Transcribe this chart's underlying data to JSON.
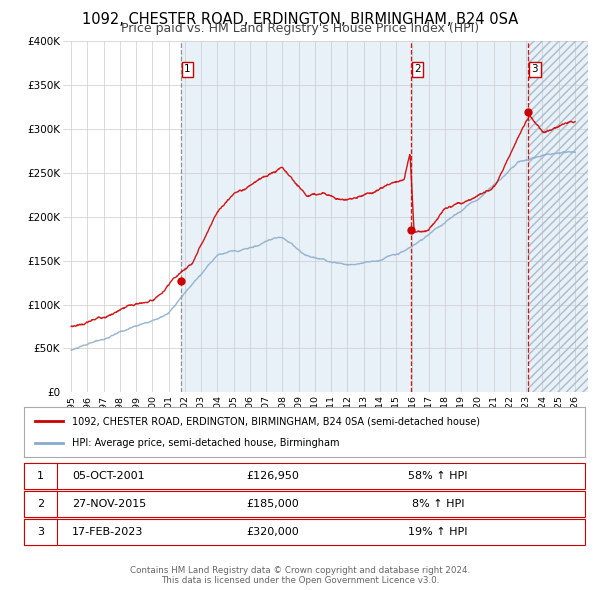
{
  "title": "1092, CHESTER ROAD, ERDINGTON, BIRMINGHAM, B24 0SA",
  "subtitle": "Price paid vs. HM Land Registry's House Price Index (HPI)",
  "ylim": [
    0,
    400000
  ],
  "yticks": [
    0,
    50000,
    100000,
    150000,
    200000,
    250000,
    300000,
    350000,
    400000
  ],
  "ytick_labels": [
    "£0",
    "£50K",
    "£100K",
    "£150K",
    "£200K",
    "£250K",
    "£300K",
    "£350K",
    "£400K"
  ],
  "xlim_start": 1994.5,
  "xlim_end": 2026.8,
  "sale_dates": [
    2001.758,
    2015.906,
    2023.126
  ],
  "sale_prices": [
    126950,
    185000,
    320000
  ],
  "sale_labels": [
    "1",
    "2",
    "3"
  ],
  "sale_dates_str": [
    "05-OCT-2001",
    "27-NOV-2015",
    "17-FEB-2023"
  ],
  "sale_prices_str": [
    "£126,950",
    "£185,000",
    "£320,000"
  ],
  "sale_hpi_str": [
    "58% ↑ HPI",
    "8% ↑ HPI",
    "19% ↑ HPI"
  ],
  "red_color": "#cc0000",
  "blue_color": "#88aacc",
  "shade_color": "#ddeeff",
  "background_color": "#ffffff",
  "grid_color": "#cccccc",
  "title_fontsize": 10.5,
  "subtitle_fontsize": 9,
  "legend_label_red": "1092, CHESTER ROAD, ERDINGTON, BIRMINGHAM, B24 0SA (semi-detached house)",
  "legend_label_blue": "HPI: Average price, semi-detached house, Birmingham",
  "footer_text": "Contains HM Land Registry data © Crown copyright and database right 2024.\nThis data is licensed under the Open Government Licence v3.0."
}
